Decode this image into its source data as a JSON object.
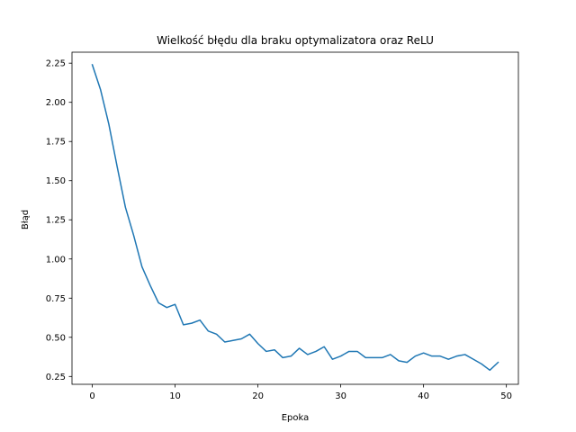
{
  "chart_data": {
    "type": "line",
    "title": "Wielkość błędu dla braku optymalizatora oraz ReLU",
    "xlabel": "Epoka",
    "ylabel": "Błąd",
    "xlim": [
      -2.45,
      51.45
    ],
    "ylim": [
      0.2,
      2.32
    ],
    "xticks": [
      0,
      10,
      20,
      30,
      40,
      50
    ],
    "yticks": [
      0.25,
      0.5,
      0.75,
      1.0,
      1.25,
      1.5,
      1.75,
      2.0,
      2.25
    ],
    "xtick_labels": [
      "0",
      "10",
      "20",
      "30",
      "40",
      "50"
    ],
    "ytick_labels": [
      "0.25",
      "0.50",
      "0.75",
      "1.00",
      "1.25",
      "1.50",
      "1.75",
      "2.00",
      "2.25"
    ],
    "grid": false,
    "legend": "none",
    "series": [
      {
        "color": "#1f77b4",
        "x": [
          0,
          1,
          2,
          3,
          4,
          5,
          6,
          7,
          8,
          9,
          10,
          11,
          12,
          13,
          14,
          15,
          16,
          17,
          18,
          19,
          20,
          21,
          22,
          23,
          24,
          25,
          26,
          27,
          28,
          29,
          30,
          31,
          32,
          33,
          34,
          35,
          36,
          37,
          38,
          39,
          40,
          41,
          42,
          43,
          44,
          45,
          46,
          47,
          48,
          49
        ],
        "values": [
          2.24,
          2.08,
          1.86,
          1.59,
          1.33,
          1.15,
          0.95,
          0.83,
          0.72,
          0.69,
          0.71,
          0.58,
          0.59,
          0.61,
          0.54,
          0.52,
          0.47,
          0.48,
          0.49,
          0.52,
          0.46,
          0.41,
          0.42,
          0.37,
          0.38,
          0.43,
          0.39,
          0.41,
          0.44,
          0.36,
          0.38,
          0.41,
          0.41,
          0.37,
          0.37,
          0.37,
          0.39,
          0.35,
          0.34,
          0.38,
          0.4,
          0.38,
          0.38,
          0.36,
          0.38,
          0.39,
          0.36,
          0.33,
          0.29,
          0.34
        ]
      }
    ]
  }
}
